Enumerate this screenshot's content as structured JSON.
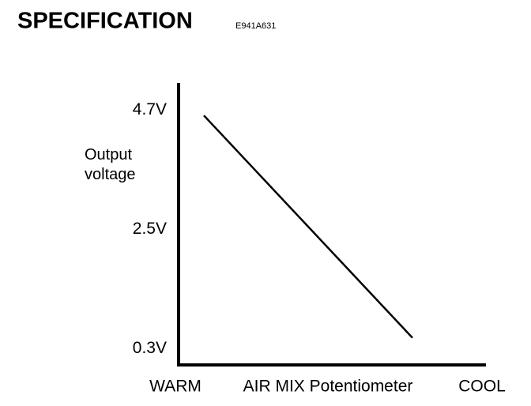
{
  "chart_data": {
    "type": "line",
    "title": "SPECIFICATION",
    "code": "E941A631",
    "ylabel": "Output voltage",
    "xlabel": "AIR MIX Potentiometer",
    "categories": [
      "WARM",
      "COOL"
    ],
    "values": [
      4.6,
      0.5
    ],
    "color": "#000000",
    "ylim": [
      0,
      5.2
    ],
    "yticks": [
      {
        "value": 0.3,
        "label": "0.3V"
      },
      {
        "value": 2.5,
        "label": "2.5V"
      },
      {
        "value": 4.7,
        "label": "4.7V"
      }
    ],
    "grid": false
  }
}
